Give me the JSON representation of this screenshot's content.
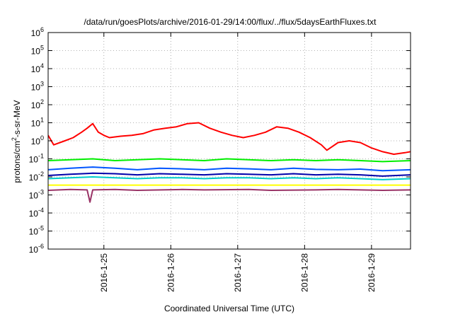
{
  "chart_data": {
    "type": "line",
    "title": "/data/run/goesPlots/archive/2016-01-29/14:00/flux/../flux/5daysEarthFluxes.txt",
    "xlabel": "Coordinated Universal Time (UTC)",
    "ylabel_parts": {
      "pre": "protons/cm",
      "sup": "2",
      "post": "-s-sr-MeV"
    },
    "y_scale": "log",
    "ylim": [
      1e-06,
      1000000.0
    ],
    "y_ticks": [
      {
        "base": "10",
        "exp": "-6",
        "value": 1e-06
      },
      {
        "base": "10",
        "exp": "-5",
        "value": 1e-05
      },
      {
        "base": "10",
        "exp": "-4",
        "value": 0.0001
      },
      {
        "base": "10",
        "exp": "-3",
        "value": 0.001
      },
      {
        "base": "10",
        "exp": "-2",
        "value": 0.01
      },
      {
        "base": "10",
        "exp": "-1",
        "value": 0.1
      },
      {
        "base": "10",
        "exp": "0",
        "value": 1
      },
      {
        "base": "10",
        "exp": "1",
        "value": 10
      },
      {
        "base": "10",
        "exp": "2",
        "value": 100
      },
      {
        "base": "10",
        "exp": "3",
        "value": 1000
      },
      {
        "base": "10",
        "exp": "4",
        "value": 10000
      },
      {
        "base": "10",
        "exp": "5",
        "value": 100000
      },
      {
        "base": "10",
        "exp": "6",
        "value": 1000000
      }
    ],
    "xlim": [
      "2016-01-24T04:00",
      "2016-01-29T14:00"
    ],
    "x_ticks": [
      {
        "label": "2016-1-25",
        "value": "2016-01-25T00:00"
      },
      {
        "label": "2016-1-26",
        "value": "2016-01-26T00:00"
      },
      {
        "label": "2016-1-27",
        "value": "2016-01-27T00:00"
      },
      {
        "label": "2016-1-28",
        "value": "2016-01-28T00:00"
      },
      {
        "label": "2016-1-29",
        "value": "2016-01-29T00:00"
      }
    ],
    "grid": true,
    "series": [
      {
        "color": "#ff0000",
        "x": [
          "2016-01-24T04:00",
          "2016-01-24T06:00",
          "2016-01-24T10:00",
          "2016-01-24T13:00",
          "2016-01-24T16:00",
          "2016-01-24T18:00",
          "2016-01-24T20:00",
          "2016-01-24T22:00",
          "2016-01-25T00:00",
          "2016-01-25T02:00",
          "2016-01-25T06:00",
          "2016-01-25T10:00",
          "2016-01-25T14:00",
          "2016-01-25T18:00",
          "2016-01-25T22:00",
          "2016-01-26T02:00",
          "2016-01-26T06:00",
          "2016-01-26T10:00",
          "2016-01-26T14:00",
          "2016-01-26T18:00",
          "2016-01-26T22:00",
          "2016-01-27T02:00",
          "2016-01-27T06:00",
          "2016-01-27T10:00",
          "2016-01-27T14:00",
          "2016-01-27T18:00",
          "2016-01-27T22:00",
          "2016-01-28T02:00",
          "2016-01-28T06:00",
          "2016-01-28T08:00",
          "2016-01-28T12:00",
          "2016-01-28T16:00",
          "2016-01-28T20:00",
          "2016-01-29T00:00",
          "2016-01-29T04:00",
          "2016-01-29T08:00",
          "2016-01-29T12:00",
          "2016-01-29T14:00"
        ],
        "y": [
          2.0,
          0.6,
          1.0,
          1.5,
          3.0,
          5.0,
          9.0,
          3.0,
          2.0,
          1.5,
          1.8,
          2.0,
          2.5,
          4.0,
          5.0,
          6.0,
          9.0,
          10.0,
          5.0,
          3.0,
          2.0,
          1.5,
          2.0,
          3.0,
          6.0,
          5.0,
          3.0,
          1.5,
          0.6,
          0.3,
          0.8,
          1.0,
          0.8,
          0.4,
          0.25,
          0.18,
          0.22,
          0.25
        ]
      },
      {
        "color": "#00ee00",
        "x": [
          "2016-01-24T04:00",
          "2016-01-24T12:00",
          "2016-01-24T20:00",
          "2016-01-25T04:00",
          "2016-01-25T12:00",
          "2016-01-25T20:00",
          "2016-01-26T04:00",
          "2016-01-26T12:00",
          "2016-01-26T20:00",
          "2016-01-27T04:00",
          "2016-01-27T12:00",
          "2016-01-27T20:00",
          "2016-01-28T04:00",
          "2016-01-28T12:00",
          "2016-01-28T20:00",
          "2016-01-29T04:00",
          "2016-01-29T14:00"
        ],
        "y": [
          0.08,
          0.09,
          0.1,
          0.08,
          0.09,
          0.1,
          0.09,
          0.08,
          0.1,
          0.09,
          0.08,
          0.09,
          0.08,
          0.09,
          0.08,
          0.07,
          0.08
        ]
      },
      {
        "color": "#0055ff",
        "x": [
          "2016-01-24T04:00",
          "2016-01-24T12:00",
          "2016-01-24T20:00",
          "2016-01-25T04:00",
          "2016-01-25T12:00",
          "2016-01-25T20:00",
          "2016-01-26T04:00",
          "2016-01-26T12:00",
          "2016-01-26T20:00",
          "2016-01-27T04:00",
          "2016-01-27T12:00",
          "2016-01-27T20:00",
          "2016-01-28T04:00",
          "2016-01-28T12:00",
          "2016-01-28T20:00",
          "2016-01-29T04:00",
          "2016-01-29T14:00"
        ],
        "y": [
          0.025,
          0.03,
          0.035,
          0.03,
          0.025,
          0.03,
          0.028,
          0.025,
          0.03,
          0.028,
          0.025,
          0.03,
          0.026,
          0.025,
          0.027,
          0.022,
          0.025
        ]
      },
      {
        "color": "#0000aa",
        "x": [
          "2016-01-24T04:00",
          "2016-01-24T12:00",
          "2016-01-24T20:00",
          "2016-01-25T04:00",
          "2016-01-25T12:00",
          "2016-01-25T20:00",
          "2016-01-26T04:00",
          "2016-01-26T12:00",
          "2016-01-26T20:00",
          "2016-01-27T04:00",
          "2016-01-27T12:00",
          "2016-01-27T20:00",
          "2016-01-28T04:00",
          "2016-01-28T12:00",
          "2016-01-28T20:00",
          "2016-01-29T04:00",
          "2016-01-29T14:00"
        ],
        "y": [
          0.012,
          0.014,
          0.016,
          0.015,
          0.013,
          0.015,
          0.014,
          0.013,
          0.015,
          0.014,
          0.013,
          0.015,
          0.013,
          0.014,
          0.013,
          0.011,
          0.013
        ]
      },
      {
        "color": "#00cccc",
        "x": [
          "2016-01-24T04:00",
          "2016-01-24T12:00",
          "2016-01-24T20:00",
          "2016-01-25T04:00",
          "2016-01-25T12:00",
          "2016-01-25T20:00",
          "2016-01-26T04:00",
          "2016-01-26T12:00",
          "2016-01-26T20:00",
          "2016-01-27T04:00",
          "2016-01-27T12:00",
          "2016-01-27T20:00",
          "2016-01-28T04:00",
          "2016-01-28T12:00",
          "2016-01-28T20:00",
          "2016-01-29T04:00",
          "2016-01-29T14:00"
        ],
        "y": [
          0.008,
          0.009,
          0.01,
          0.009,
          0.008,
          0.009,
          0.009,
          0.008,
          0.009,
          0.009,
          0.008,
          0.009,
          0.008,
          0.009,
          0.008,
          0.007,
          0.008
        ]
      },
      {
        "color": "#ffff00",
        "x": [
          "2016-01-24T04:00",
          "2016-01-25T04:00",
          "2016-01-26T04:00",
          "2016-01-27T04:00",
          "2016-01-28T04:00",
          "2016-01-29T04:00",
          "2016-01-29T14:00"
        ],
        "y": [
          0.0035,
          0.0035,
          0.0035,
          0.0035,
          0.0035,
          0.0035,
          0.0035
        ]
      },
      {
        "color": "#993366",
        "x": [
          "2016-01-24T04:00",
          "2016-01-24T12:00",
          "2016-01-24T18:00",
          "2016-01-24T19:00",
          "2016-01-24T20:00",
          "2016-01-25T04:00",
          "2016-01-25T12:00",
          "2016-01-26T04:00",
          "2016-01-26T12:00",
          "2016-01-27T04:00",
          "2016-01-27T12:00",
          "2016-01-28T04:00",
          "2016-01-28T12:00",
          "2016-01-29T04:00",
          "2016-01-29T14:00"
        ],
        "y": [
          0.0018,
          0.002,
          0.0019,
          0.0004,
          0.0019,
          0.002,
          0.0018,
          0.002,
          0.0019,
          0.002,
          0.0018,
          0.0019,
          0.002,
          0.0018,
          0.0019
        ]
      }
    ]
  }
}
